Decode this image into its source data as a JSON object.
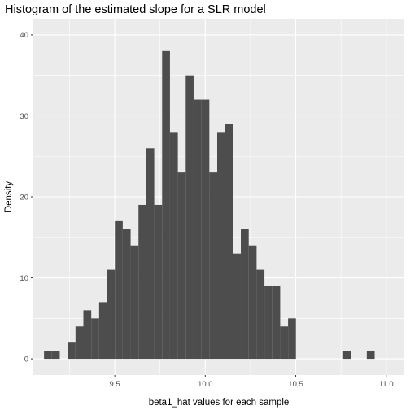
{
  "chart_data": {
    "type": "histogram",
    "title": "Histogram of the estimated slope for a SLR model",
    "xlabel": "beta1_hat values for each sample",
    "ylabel": "Density",
    "xlim": [
      9.05,
      11.1
    ],
    "ylim": [
      -2,
      42
    ],
    "x_ticks": [
      9.5,
      10.0,
      10.5,
      11.0
    ],
    "x_tick_labels": [
      "9.5",
      "10.0",
      "10.5",
      "11.0"
    ],
    "y_ticks": [
      0,
      10,
      20,
      30,
      40
    ],
    "y_tick_labels": [
      "0",
      "10",
      "20",
      "30",
      "40"
    ],
    "bin_width": 0.0435,
    "bin_start": 9.109,
    "counts": [
      1,
      1,
      0,
      2,
      4,
      6,
      5,
      7,
      11,
      17,
      16,
      14,
      19,
      26,
      19,
      38,
      28,
      23,
      35,
      32,
      32,
      23,
      28,
      29,
      13,
      16,
      14,
      11,
      9,
      9,
      4,
      5,
      0,
      0,
      0,
      0,
      0,
      0,
      1,
      0,
      0,
      1
    ],
    "grid": true,
    "bar_color": "#4d4d4d",
    "panel_background": "#ebebeb",
    "grid_color": "#ffffff"
  }
}
